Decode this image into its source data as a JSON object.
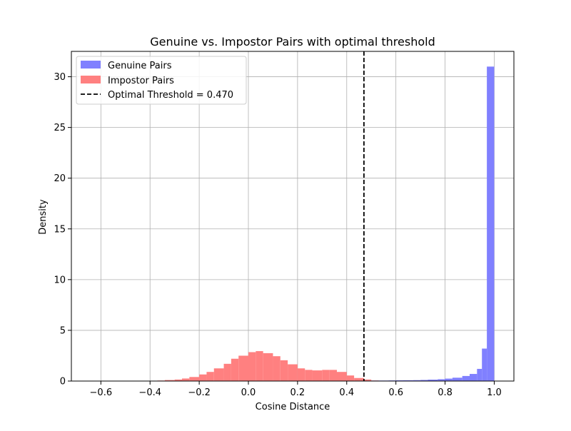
{
  "chart_data": {
    "type": "bar",
    "title": "Genuine vs. Impostor Pairs with optimal threshold",
    "xlabel": "Cosine Distance",
    "ylabel": "Density",
    "xlim": [
      -0.72,
      1.08
    ],
    "ylim": [
      0,
      32.5
    ],
    "grid": true,
    "legend_position": "top-left",
    "x_ticks": [
      -0.6,
      -0.4,
      -0.2,
      0.0,
      0.2,
      0.4,
      0.6,
      0.8,
      1.0
    ],
    "x_tick_labels": [
      "−0.6",
      "−0.4",
      "−0.2",
      "0.0",
      "0.2",
      "0.4",
      "0.6",
      "0.8",
      "1.0"
    ],
    "y_ticks": [
      0,
      5,
      10,
      15,
      20,
      25,
      30
    ],
    "y_tick_labels": [
      "0",
      "5",
      "10",
      "15",
      "20",
      "25",
      "30"
    ],
    "series": [
      {
        "name": "Genuine Pairs",
        "color": "#8080ff",
        "bins": [
          {
            "x0": 0.4,
            "x1": 0.43,
            "y": 0.03
          },
          {
            "x0": 0.43,
            "x1": 0.47,
            "y": 0.03
          },
          {
            "x0": 0.47,
            "x1": 0.5,
            "y": 0.04
          },
          {
            "x0": 0.5,
            "x1": 0.53,
            "y": 0.05
          },
          {
            "x0": 0.53,
            "x1": 0.57,
            "y": 0.05
          },
          {
            "x0": 0.57,
            "x1": 0.6,
            "y": 0.06
          },
          {
            "x0": 0.6,
            "x1": 0.63,
            "y": 0.07
          },
          {
            "x0": 0.63,
            "x1": 0.67,
            "y": 0.08
          },
          {
            "x0": 0.67,
            "x1": 0.7,
            "y": 0.09
          },
          {
            "x0": 0.7,
            "x1": 0.73,
            "y": 0.11
          },
          {
            "x0": 0.73,
            "x1": 0.77,
            "y": 0.14
          },
          {
            "x0": 0.77,
            "x1": 0.8,
            "y": 0.18
          },
          {
            "x0": 0.8,
            "x1": 0.83,
            "y": 0.24
          },
          {
            "x0": 0.83,
            "x1": 0.87,
            "y": 0.33
          },
          {
            "x0": 0.87,
            "x1": 0.9,
            "y": 0.5
          },
          {
            "x0": 0.9,
            "x1": 0.93,
            "y": 0.7
          },
          {
            "x0": 0.93,
            "x1": 0.95,
            "y": 1.2
          },
          {
            "x0": 0.95,
            "x1": 0.97,
            "y": 3.2
          },
          {
            "x0": 0.97,
            "x1": 1.0,
            "y": 31.0
          }
        ]
      },
      {
        "name": "Impostor Pairs",
        "color": "#ff8080",
        "bins": [
          {
            "x0": -0.4,
            "x1": -0.37,
            "y": 0.02
          },
          {
            "x0": -0.37,
            "x1": -0.34,
            "y": 0.05
          },
          {
            "x0": -0.34,
            "x1": -0.3,
            "y": 0.1
          },
          {
            "x0": -0.3,
            "x1": -0.27,
            "y": 0.15
          },
          {
            "x0": -0.27,
            "x1": -0.24,
            "y": 0.25
          },
          {
            "x0": -0.24,
            "x1": -0.2,
            "y": 0.4
          },
          {
            "x0": -0.2,
            "x1": -0.17,
            "y": 0.65
          },
          {
            "x0": -0.17,
            "x1": -0.14,
            "y": 0.9
          },
          {
            "x0": -0.14,
            "x1": -0.1,
            "y": 1.25
          },
          {
            "x0": -0.1,
            "x1": -0.07,
            "y": 1.7
          },
          {
            "x0": -0.07,
            "x1": -0.04,
            "y": 2.2
          },
          {
            "x0": -0.04,
            "x1": 0.0,
            "y": 2.5
          },
          {
            "x0": 0.0,
            "x1": 0.03,
            "y": 2.85
          },
          {
            "x0": 0.03,
            "x1": 0.06,
            "y": 2.95
          },
          {
            "x0": 0.06,
            "x1": 0.1,
            "y": 2.75
          },
          {
            "x0": 0.1,
            "x1": 0.13,
            "y": 2.45
          },
          {
            "x0": 0.13,
            "x1": 0.16,
            "y": 2.05
          },
          {
            "x0": 0.16,
            "x1": 0.2,
            "y": 1.65
          },
          {
            "x0": 0.2,
            "x1": 0.23,
            "y": 1.25
          },
          {
            "x0": 0.23,
            "x1": 0.26,
            "y": 1.1
          },
          {
            "x0": 0.26,
            "x1": 0.3,
            "y": 1.05
          },
          {
            "x0": 0.3,
            "x1": 0.33,
            "y": 1.1
          },
          {
            "x0": 0.33,
            "x1": 0.36,
            "y": 1.1
          },
          {
            "x0": 0.36,
            "x1": 0.4,
            "y": 0.9
          },
          {
            "x0": 0.4,
            "x1": 0.43,
            "y": 0.55
          },
          {
            "x0": 0.43,
            "x1": 0.47,
            "y": 0.3
          },
          {
            "x0": 0.47,
            "x1": 0.5,
            "y": 0.15
          },
          {
            "x0": 0.5,
            "x1": 0.53,
            "y": 0.05
          }
        ]
      }
    ],
    "threshold": {
      "name": "Optimal Threshold = 0.470",
      "x": 0.47,
      "color": "#000000",
      "style": "dashed"
    }
  }
}
